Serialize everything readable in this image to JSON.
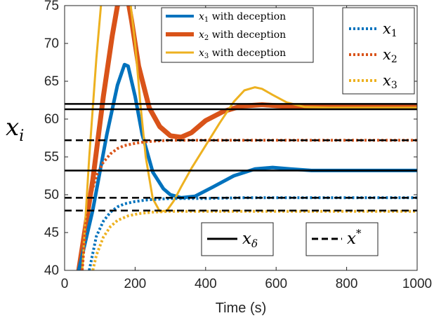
{
  "chart_data": {
    "type": "line",
    "title": "",
    "xlabel": "Time (s)",
    "ylabel": "x_i",
    "ylabel_main": "x",
    "ylabel_sub": "i",
    "xlim": [
      0,
      1000
    ],
    "ylim": [
      40,
      75
    ],
    "xticks": [
      0,
      200,
      400,
      600,
      800,
      1000
    ],
    "yticks": [
      40,
      45,
      50,
      55,
      60,
      65,
      70,
      75
    ],
    "grid": false,
    "colors": {
      "x1": "#0072BD",
      "x2": "#D95319",
      "x3": "#EDB120",
      "ref": "#000000"
    },
    "series": [
      {
        "name": "x1 with deception",
        "label_main": "x",
        "label_sub": "1",
        "label_rest": " with deception",
        "color": "#0072BD",
        "style": "solid",
        "width": 5,
        "x": [
          40,
          80,
          120,
          150,
          170,
          180,
          200,
          220,
          250,
          280,
          300,
          330,
          370,
          420,
          480,
          540,
          590,
          640,
          700,
          800,
          900,
          1000
        ],
        "y": [
          40,
          48,
          58,
          64.5,
          67.2,
          67,
          63,
          58,
          53,
          50.8,
          50,
          49.6,
          49.8,
          51,
          52.5,
          53.4,
          53.6,
          53.4,
          53.2,
          53.2,
          53.2,
          53.2
        ]
      },
      {
        "name": "x2 with deception",
        "label_main": "x",
        "label_sub": "2",
        "label_rest": " with deception",
        "color": "#D95319",
        "style": "solid",
        "width": 7,
        "x": [
          40,
          80,
          110,
          135,
          150,
          165,
          175,
          190,
          210,
          240,
          270,
          300,
          330,
          360,
          400,
          450,
          500,
          560,
          620,
          700,
          800,
          900,
          1000
        ],
        "y": [
          40,
          52,
          63,
          71,
          75,
          79,
          77,
          73,
          67,
          61.5,
          59,
          57.8,
          57.6,
          58.2,
          59.8,
          61,
          61.7,
          61.9,
          61.7,
          61.6,
          61.6,
          61.6,
          61.6
        ]
      },
      {
        "name": "x3 with deception",
        "label_main": "x",
        "label_sub": "3",
        "label_rest": " with deception",
        "color": "#EDB120",
        "style": "solid",
        "width": 3,
        "x": [
          50,
          70,
          90,
          105,
          115,
          170,
          185,
          200,
          215,
          230,
          250,
          270,
          290,
          310,
          330,
          360,
          400,
          440,
          480,
          510,
          540,
          560,
          590,
          630,
          680,
          750,
          850,
          1000
        ],
        "y": [
          40,
          55,
          68,
          76,
          80,
          80,
          76,
          70,
          62,
          55,
          49.5,
          47.8,
          47.9,
          49.2,
          51,
          53.5,
          56.5,
          59.5,
          62.3,
          63.8,
          64.2,
          64,
          63.2,
          62.2,
          61.6,
          61.5,
          61.5,
          61.5
        ]
      },
      {
        "name": "x1",
        "label_main": "x",
        "label_sub": "1",
        "color": "#0072BD",
        "style": "dotted",
        "width": 4,
        "x": [
          70,
          90,
          110,
          130,
          150,
          170,
          200,
          230,
          260,
          300,
          350,
          400,
          500,
          600,
          700,
          800,
          900,
          1000
        ],
        "y": [
          40,
          44.5,
          46.5,
          47.7,
          48.4,
          48.8,
          49.1,
          49.3,
          49.4,
          49.5,
          49.5,
          49.5,
          49.6,
          49.6,
          49.6,
          49.6,
          49.6,
          49.6
        ]
      },
      {
        "name": "x2",
        "label_main": "x",
        "label_sub": "2",
        "color": "#D95319",
        "style": "dotted",
        "width": 4,
        "x": [
          50,
          60,
          75,
          90,
          110,
          130,
          150,
          170,
          200,
          230,
          260,
          300,
          350,
          400,
          500,
          600,
          700,
          800,
          900,
          1000
        ],
        "y": [
          40,
          46,
          50,
          52.5,
          54.3,
          55.4,
          56.1,
          56.5,
          56.8,
          57,
          57.1,
          57.2,
          57.2,
          57.2,
          57.2,
          57.2,
          57.2,
          57.2,
          57.2,
          57.2
        ]
      },
      {
        "name": "x3",
        "label_main": "x",
        "label_sub": "3",
        "color": "#EDB120",
        "style": "dotted",
        "width": 4,
        "x": [
          80,
          90,
          110,
          130,
          150,
          180,
          210,
          250,
          300,
          350,
          400,
          500,
          600,
          700,
          800,
          900,
          1000
        ],
        "y": [
          40,
          42,
          44.4,
          45.8,
          46.6,
          47.2,
          47.5,
          47.7,
          47.8,
          47.8,
          47.8,
          47.8,
          47.8,
          47.8,
          47.8,
          47.8,
          47.8
        ]
      }
    ],
    "reference_lines": [
      {
        "name": "x_delta",
        "style": "solid",
        "y": [
          62.0,
          61.3,
          53.2
        ]
      },
      {
        "name": "x*",
        "style": "dashed",
        "y": [
          57.2,
          49.6,
          47.9
        ]
      }
    ],
    "legends": [
      {
        "placement": "top-center",
        "entries": [
          "x1 with deception",
          "x2 with deception",
          "x3 with deception"
        ]
      },
      {
        "placement": "top-right",
        "entries": [
          "x1",
          "x2",
          "x3"
        ]
      },
      {
        "placement": "bottom-center",
        "entries": [
          "x_delta"
        ]
      },
      {
        "placement": "bottom-right",
        "entries": [
          "x*"
        ]
      }
    ],
    "ref_legend": {
      "delta": {
        "main": "x",
        "sub": "δ"
      },
      "star": {
        "main": "x",
        "sup": "*"
      }
    }
  }
}
